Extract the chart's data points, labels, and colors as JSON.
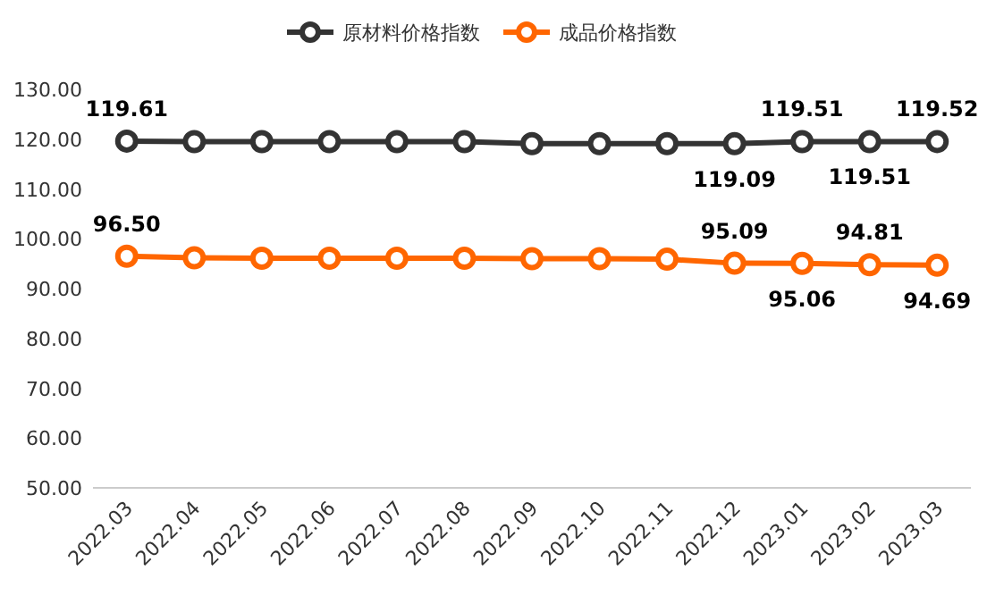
{
  "chart_data": {
    "type": "line",
    "categories": [
      "2022.03",
      "2022.04",
      "2022.05",
      "2022.06",
      "2022.07",
      "2022.08",
      "2022.09",
      "2022.10",
      "2022.11",
      "2022.12",
      "2023.01",
      "2023.02",
      "2023.03"
    ],
    "series": [
      {
        "name": "原材料价格指数",
        "color": "#333333",
        "values": [
          119.61,
          119.5,
          119.5,
          119.5,
          119.5,
          119.5,
          119.1,
          119.1,
          119.1,
          119.09,
          119.51,
          119.51,
          119.52
        ],
        "value_labels": [
          "119.61",
          null,
          null,
          null,
          null,
          null,
          null,
          null,
          null,
          "119.09",
          "119.51",
          "119.51",
          "119.52"
        ]
      },
      {
        "name": "成品价格指数",
        "color": "#ff6600",
        "values": [
          96.5,
          96.2,
          96.1,
          96.1,
          96.1,
          96.1,
          96.0,
          96.0,
          95.9,
          95.09,
          95.06,
          94.81,
          94.69
        ],
        "value_labels": [
          "96.50",
          null,
          null,
          null,
          null,
          null,
          null,
          null,
          null,
          "95.09",
          "95.06",
          "94.81",
          "94.69"
        ]
      }
    ],
    "ylim": [
      50,
      130
    ],
    "yticks": [
      {
        "value": 50,
        "label": "50.00"
      },
      {
        "value": 60,
        "label": "60.00"
      },
      {
        "value": 70,
        "label": "70.00"
      },
      {
        "value": 80,
        "label": "80.00"
      },
      {
        "value": 90,
        "label": "90.00"
      },
      {
        "value": 100,
        "label": "100.00"
      },
      {
        "value": 110,
        "label": "110.00"
      },
      {
        "value": 120,
        "label": "120.00"
      },
      {
        "value": 130,
        "label": "130.00"
      }
    ],
    "grid": false,
    "legend": "top",
    "marker": "circle",
    "line_style": "solid"
  }
}
